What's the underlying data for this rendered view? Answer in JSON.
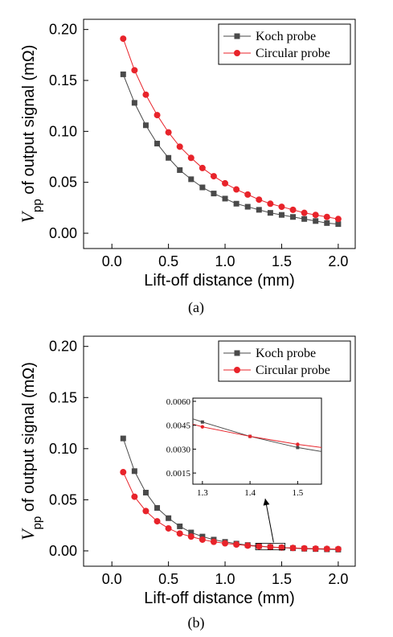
{
  "chart_data": [
    {
      "type": "line",
      "caption": "(a)",
      "xlabel": "Lift-off distance (mm)",
      "ylabel_main": "V",
      "ylabel_sub": "pp",
      "ylabel_rest": " of output signal (mΩ)",
      "xlim": [
        -0.25,
        2.15
      ],
      "ylim": [
        -0.015,
        0.21
      ],
      "xticks": [
        "0.0",
        "0.5",
        "1.0",
        "1.5",
        "2.0"
      ],
      "yticks": [
        "0.00",
        "0.05",
        "0.10",
        "0.15",
        "0.20"
      ],
      "legend_position": "top-right",
      "x": [
        0.1,
        0.2,
        0.3,
        0.4,
        0.5,
        0.6,
        0.7,
        0.8,
        0.9,
        1.0,
        1.1,
        1.2,
        1.3,
        1.4,
        1.5,
        1.6,
        1.7,
        1.8,
        1.9,
        2.0
      ],
      "series": [
        {
          "name": "Koch probe",
          "color": "#4a4a4a",
          "marker": "square",
          "values": [
            0.156,
            0.128,
            0.106,
            0.088,
            0.074,
            0.062,
            0.053,
            0.045,
            0.039,
            0.034,
            0.029,
            0.026,
            0.023,
            0.02,
            0.018,
            0.016,
            0.014,
            0.012,
            0.01,
            0.009
          ]
        },
        {
          "name": "Circular probe",
          "color": "#e8232a",
          "marker": "circle",
          "values": [
            0.191,
            0.16,
            0.136,
            0.116,
            0.099,
            0.085,
            0.074,
            0.064,
            0.056,
            0.049,
            0.043,
            0.038,
            0.033,
            0.029,
            0.026,
            0.023,
            0.02,
            0.018,
            0.016,
            0.014
          ]
        }
      ]
    },
    {
      "type": "line",
      "caption": "(b)",
      "xlabel": "Lift-off distance (mm)",
      "ylabel_main": "V",
      "ylabel_sub": "pp",
      "ylabel_rest": " of output signal (mΩ)",
      "xlim": [
        -0.25,
        2.15
      ],
      "ylim": [
        -0.015,
        0.21
      ],
      "xticks": [
        "0.0",
        "0.5",
        "1.0",
        "1.5",
        "2.0"
      ],
      "yticks": [
        "0.00",
        "0.05",
        "0.10",
        "0.15",
        "0.20"
      ],
      "legend_position": "top-right",
      "x": [
        0.1,
        0.2,
        0.3,
        0.4,
        0.5,
        0.6,
        0.7,
        0.8,
        0.9,
        1.0,
        1.1,
        1.2,
        1.3,
        1.4,
        1.5,
        1.6,
        1.7,
        1.8,
        1.9,
        2.0
      ],
      "series": [
        {
          "name": "Koch probe",
          "color": "#4a4a4a",
          "marker": "square",
          "values": [
            0.11,
            0.078,
            0.057,
            0.042,
            0.032,
            0.024,
            0.018,
            0.014,
            0.011,
            0.0088,
            0.0071,
            0.0057,
            0.0047,
            0.0038,
            0.0031,
            0.0026,
            0.0021,
            0.0018,
            0.0015,
            0.0013
          ]
        },
        {
          "name": "Circular probe",
          "color": "#e8232a",
          "marker": "circle",
          "values": [
            0.077,
            0.053,
            0.039,
            0.029,
            0.022,
            0.017,
            0.014,
            0.011,
            0.0089,
            0.0074,
            0.0062,
            0.0052,
            0.0044,
            0.0038,
            0.0033,
            0.0029,
            0.0025,
            0.0022,
            0.002,
            0.0018
          ]
        }
      ],
      "inset": {
        "xlim": [
          1.28,
          1.55
        ],
        "ylim": [
          0.0008,
          0.0062
        ],
        "xticks": [
          "1.3",
          "1.4",
          "1.5"
        ],
        "yticks": [
          "0.0015",
          "0.0030",
          "0.0045",
          "0.0060"
        ],
        "zoom_box": {
          "x": [
            1.27,
            1.53
          ],
          "y": [
            0.001,
            0.0075
          ]
        }
      }
    }
  ]
}
